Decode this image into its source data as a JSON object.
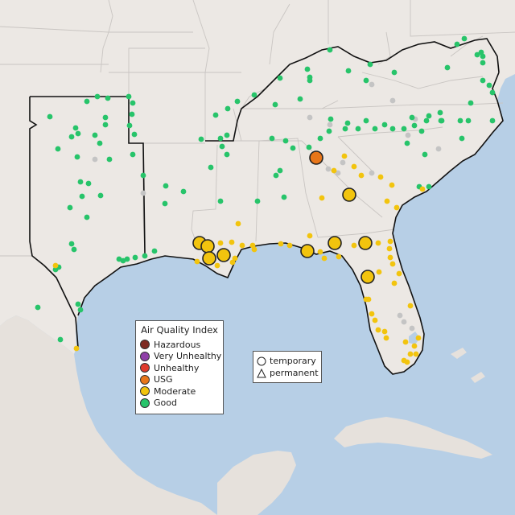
{
  "legend": {
    "title": "Air Quality Index",
    "categories": [
      {
        "label": "Hazardous",
        "color": "#7e2a22"
      },
      {
        "label": "Very Unhealthy",
        "color": "#8f3fa8"
      },
      {
        "label": "Unhealthy",
        "color": "#e03a2c"
      },
      {
        "label": "USG",
        "color": "#e8761a"
      },
      {
        "label": "Moderate",
        "color": "#f2c40e"
      },
      {
        "label": "Good",
        "color": "#27c46a"
      }
    ]
  },
  "shape_legend": {
    "temporary": "temporary",
    "permanent": "permanent"
  },
  "colors": {
    "land": "#ece8e4",
    "water": "#b7cfe6",
    "gray_station": "#c4c4c4",
    "border": "#c7c3c0"
  }
}
